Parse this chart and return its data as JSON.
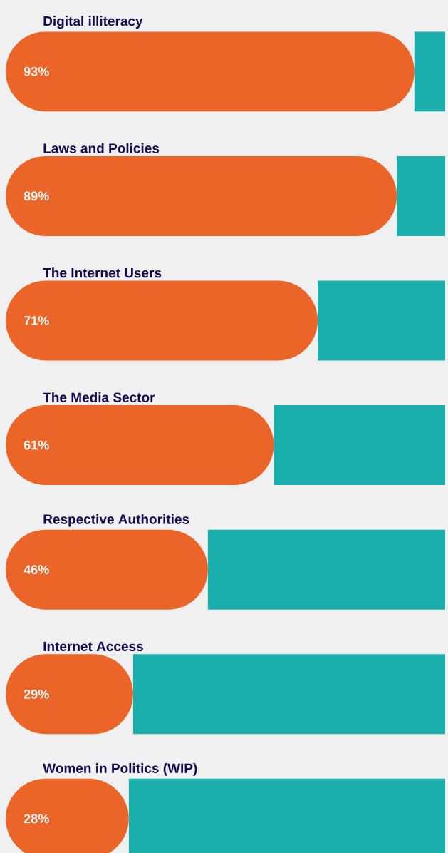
{
  "chart_data": {
    "type": "bar",
    "orientation": "horizontal",
    "stacked": true,
    "categories": [
      "Digital illiteracy",
      "Laws and Policies",
      "The Internet Users",
      "The Media Sector",
      "Respective Authorities",
      "Internet Access",
      "Women in Politics (WIP)"
    ],
    "series": [
      {
        "color": "#eb6428",
        "values": [
          93,
          89,
          71,
          61,
          46,
          29,
          28
        ],
        "value_labels": [
          "93%",
          "89%",
          "71%",
          "61%",
          "46%",
          "29%",
          "28%"
        ]
      },
      {
        "color": "#1aaeac",
        "values": [
          7,
          11,
          29,
          39,
          54,
          71,
          72
        ]
      }
    ]
  }
}
